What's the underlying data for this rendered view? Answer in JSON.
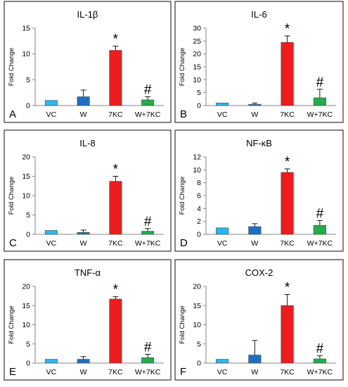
{
  "colors": {
    "VC": "#29b8ea",
    "W": "#1f6fc1",
    "7KC": "#ee1c1c",
    "W+7KC": "#22ac4c",
    "axis": "#868686",
    "frame": "#333333"
  },
  "chart_data": [
    {
      "panel_letter": "A",
      "type": "bar",
      "title": "IL-1β",
      "ylabel": "Fold Change",
      "categories": [
        "VC",
        "W",
        "7KC",
        "W+7KC"
      ],
      "values": [
        1.0,
        1.7,
        10.7,
        1.1
      ],
      "errors": [
        0,
        1.3,
        0.8,
        0.6
      ],
      "ylim": [
        0,
        15
      ],
      "yticks": [
        0,
        5,
        10,
        15
      ],
      "annotations": [
        "",
        "",
        "*",
        "#"
      ]
    },
    {
      "panel_letter": "B",
      "type": "bar",
      "title": "IL-6",
      "ylabel": "Fold Change",
      "categories": [
        "VC",
        "W",
        "7KC",
        "W+7KC"
      ],
      "values": [
        1.0,
        0.5,
        24.5,
        3.0
      ],
      "errors": [
        0,
        0.5,
        2.5,
        3.3
      ],
      "ylim": [
        0,
        30
      ],
      "yticks": [
        0,
        5,
        10,
        15,
        20,
        25,
        30
      ],
      "annotations": [
        "",
        "",
        "*",
        "#"
      ]
    },
    {
      "panel_letter": "C",
      "type": "bar",
      "title": "IL-8",
      "ylabel": "Fold Change",
      "categories": [
        "VC",
        "W",
        "7KC",
        "W+7KC"
      ],
      "values": [
        1.0,
        0.5,
        13.7,
        0.8
      ],
      "errors": [
        0,
        0.6,
        1.3,
        0.7
      ],
      "ylim": [
        0,
        20
      ],
      "yticks": [
        0,
        5,
        10,
        15,
        20
      ],
      "annotations": [
        "",
        "",
        "*",
        "#"
      ]
    },
    {
      "panel_letter": "D",
      "type": "bar",
      "title": "NF-κB",
      "ylabel": "Fold Change",
      "categories": [
        "VC",
        "W",
        "7KC",
        "W+7KC"
      ],
      "values": [
        1.0,
        1.2,
        9.6,
        1.4
      ],
      "errors": [
        0,
        0.45,
        0.55,
        0.75
      ],
      "ylim": [
        0,
        12
      ],
      "yticks": [
        0,
        2,
        4,
        6,
        8,
        10,
        12
      ],
      "annotations": [
        "",
        "",
        "*",
        "#"
      ]
    },
    {
      "panel_letter": "E",
      "type": "bar",
      "title": "TNF-α",
      "ylabel": "Fold Change",
      "categories": [
        "VC",
        "W",
        "7KC",
        "W+7KC"
      ],
      "values": [
        1.0,
        1.0,
        16.7,
        1.4
      ],
      "errors": [
        0,
        0.7,
        0.6,
        0.9
      ],
      "ylim": [
        0,
        20
      ],
      "yticks": [
        0,
        5,
        10,
        15,
        20
      ],
      "annotations": [
        "",
        "",
        "*",
        "#"
      ]
    },
    {
      "panel_letter": "F",
      "type": "bar",
      "title": "COX-2",
      "ylabel": "Fold Change",
      "categories": [
        "VC",
        "W",
        "7KC",
        "W+7KC"
      ],
      "values": [
        1.0,
        2.1,
        15.0,
        1.1
      ],
      "errors": [
        0,
        3.8,
        2.9,
        0.8
      ],
      "ylim": [
        0,
        20
      ],
      "yticks": [
        0,
        5,
        10,
        15,
        20
      ],
      "annotations": [
        "",
        "",
        "*",
        "#"
      ]
    }
  ]
}
